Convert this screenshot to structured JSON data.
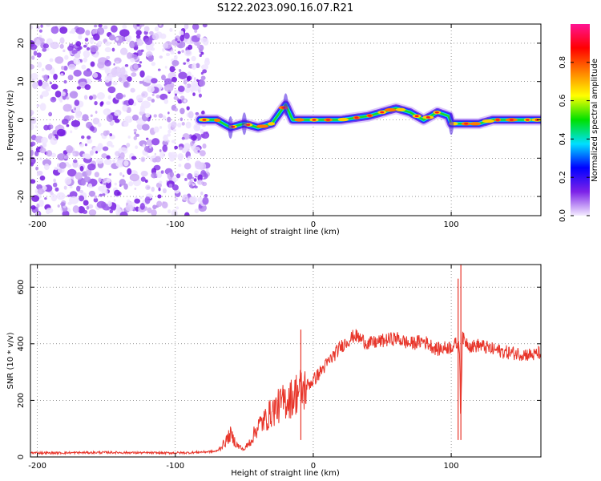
{
  "title": "S122.2023.090.16.07.R21",
  "colors": {
    "snr_line": "#e8352a",
    "low_noise": "#7d22e8",
    "axis": "#000000"
  },
  "chart_data": [
    {
      "type": "heatmap",
      "xlabel": "Height of straight line (km)",
      "ylabel": "Frequency (Hz)",
      "xlim": [
        -205,
        165
      ],
      "ylim": [
        -25,
        25
      ],
      "xticks": [
        -200,
        -100,
        0,
        100
      ],
      "yticks": [
        -20,
        -10,
        0,
        10,
        20
      ],
      "grid": true,
      "noise_region_x": [
        -205,
        -80
      ],
      "ridge": {
        "description_points_x": [
          -82,
          -70,
          -60,
          -50,
          -40,
          -30,
          -20,
          -15,
          -10,
          0,
          10,
          20,
          40,
          50,
          60,
          70,
          80,
          90,
          98,
          100,
          110,
          120,
          130,
          140,
          150,
          165
        ],
        "description_points_y": [
          0,
          0,
          -2,
          -1,
          -2,
          -1,
          4,
          0,
          0,
          0,
          0,
          0,
          1,
          2,
          3,
          2,
          0,
          2,
          1,
          -1,
          -1,
          -1,
          0,
          0,
          0,
          0
        ]
      },
      "colorbar": {
        "label": "Normalized spectral amplitude",
        "range": [
          0,
          1
        ],
        "ticks": [
          "0.0",
          "0.2",
          "0.4",
          "0.6",
          "0.8"
        ],
        "tick_values": [
          0.0,
          0.2,
          0.4,
          0.6,
          0.8
        ],
        "stops": [
          "#f4ecff",
          "#7d22e8",
          "#0000ff",
          "#00e0ff",
          "#00e000",
          "#ffff00",
          "#ff8000",
          "#ff0000",
          "#ff1493"
        ]
      }
    },
    {
      "type": "line",
      "xlabel": "Height of straight line (km)",
      "ylabel": "SNR (10 * v/v)",
      "xlim": [
        -205,
        165
      ],
      "ylim": [
        0,
        680
      ],
      "xticks": [
        -200,
        -100,
        0,
        100
      ],
      "yticks": [
        0,
        200,
        400,
        600
      ],
      "grid": true,
      "series": [
        {
          "x": [
            -205,
            -190,
            -170,
            -150,
            -130,
            -110,
            -90,
            -70,
            -65,
            -60,
            -55,
            -50,
            -45,
            -40,
            -35,
            -30,
            -25,
            -20,
            -15,
            -10,
            -8,
            -5,
            0,
            5,
            10,
            15,
            20,
            25,
            30,
            40,
            50,
            60,
            70,
            80,
            90,
            100,
            104,
            106,
            107,
            108,
            110,
            115,
            120,
            130,
            140,
            150,
            160,
            165
          ],
          "y": [
            15,
            14,
            15,
            16,
            15,
            14,
            15,
            20,
            45,
            80,
            40,
            25,
            60,
            110,
            130,
            160,
            180,
            200,
            210,
            240,
            230,
            250,
            270,
            300,
            330,
            360,
            390,
            410,
            430,
            400,
            410,
            420,
            400,
            410,
            380,
            390,
            400,
            380,
            150,
            420,
            410,
            390,
            395,
            380,
            370,
            365,
            360,
            370
          ]
        }
      ],
      "spikes": [
        {
          "x": -9,
          "y": 450
        },
        {
          "x": 105,
          "y": 630
        },
        {
          "x": 107,
          "y": 680
        }
      ]
    }
  ]
}
